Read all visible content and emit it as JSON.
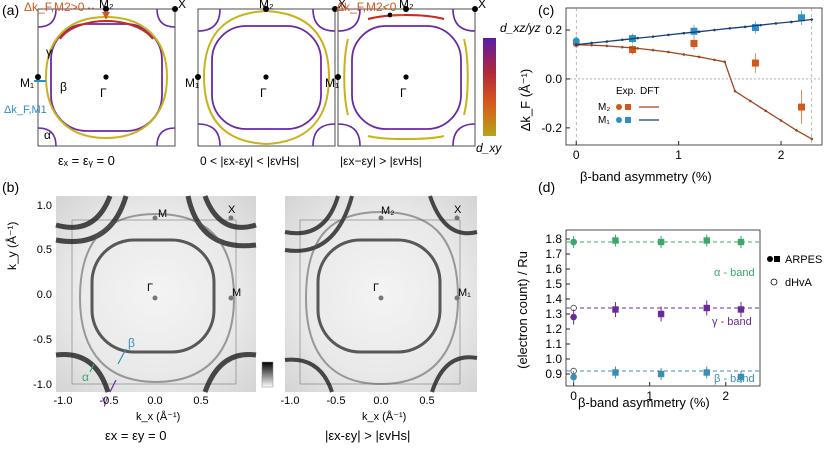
{
  "panel_a": {
    "label": "(a)",
    "cells": [
      {
        "caption": "εₓ = εᵧ = 0",
        "annotation": "Δk_F,M2>0",
        "annotation_left": "Δk_F,M1"
      },
      {
        "caption": "0 < |εx-εy| < |εvHs|",
        "annotation": ""
      },
      {
        "caption": "|εx−εy| > |εvHs|",
        "annotation": "Δk_F,M2<0"
      }
    ],
    "points": {
      "M1": "M₁",
      "M2": "M₂",
      "X": "X",
      "Gamma": "Γ"
    },
    "band_labels": {
      "alpha": "α",
      "beta": "β",
      "gamma": "γ"
    },
    "colorbar": {
      "top": "d_xz/yz",
      "bottom": "d_xy"
    },
    "colors": {
      "outer": "#6a2aa8",
      "inner_top": "#c8282a",
      "inner_mid": "#e06a1a",
      "inner_bottom": "#c9b21a",
      "m2_annot": "#d2571c",
      "m1_annot": "#2f8fc4"
    }
  },
  "panel_b": {
    "label": "(b)",
    "left": {
      "caption": "εx = εy = 0",
      "points": {
        "M_top": "M",
        "X": "X",
        "M_right": "M",
        "Gamma": "Γ"
      },
      "annot": {
        "beta": "β",
        "alpha": "α",
        "gamma": "γ"
      }
    },
    "right": {
      "caption": "|εx-εy| > |εvHs|",
      "points": {
        "M_top": "M₂",
        "X": "X",
        "M_right": "M₁",
        "Gamma": "Γ"
      }
    },
    "ylabel": "k_y (Å⁻¹)",
    "xlabel": "k_x (Å⁻¹)",
    "yticks": [
      "1.0",
      "0.5",
      "0.0",
      "-0.5",
      "-1.0"
    ],
    "xticks": [
      "-1.0",
      "-0.5",
      "0.0",
      "0.5"
    ],
    "annot_colors": {
      "alpha": "#3aa86a",
      "beta": "#3a8db4",
      "gamma": "#6a2a9a"
    }
  },
  "panel_c": {
    "label": "(c)",
    "ylabel": "Δk_F (Å⁻¹)",
    "xlabel": "β-band asymmetry (%)",
    "legend": {
      "exp": "Exp.",
      "dft": "DFT",
      "m2": "M₂",
      "m1": "M₁"
    },
    "colors": {
      "m2": "#d2571c",
      "m1": "#2f8fc4",
      "dft_m2": "#a0461c",
      "dft_m1": "#1a3f7a"
    }
  },
  "panel_d": {
    "label": "(d)",
    "ylabel": "(electron count) / Ru",
    "xlabel": "β-band asymmetry (%)",
    "legend": {
      "arpes": "ARPES",
      "dhva": "dHvA"
    },
    "band_labels": {
      "alpha": "α - band",
      "gamma": "γ - band",
      "beta": "β - band"
    },
    "colors": {
      "alpha": "#3aa86a",
      "gamma": "#6a2a9a",
      "beta": "#3a8db4"
    }
  },
  "chart_data": [
    {
      "type": "scatter",
      "xlabel": "β-band asymmetry (%)",
      "ylabel": "Δk_F (Å⁻¹)",
      "xlim": [
        -0.1,
        2.4
      ],
      "ylim": [
        -0.27,
        0.29
      ],
      "xticks": [
        0,
        1,
        2
      ],
      "yticks": [
        -0.2,
        0.0,
        0.2
      ],
      "series": [
        {
          "name": "M₂",
          "kind": "Exp.",
          "x": [
            0.0,
            0.55,
            1.15,
            1.75,
            2.2
          ],
          "y": [
            0.145,
            0.12,
            0.145,
            0.065,
            -0.115
          ],
          "err": [
            0.02,
            0.02,
            0.025,
            0.04,
            0.07
          ]
        },
        {
          "name": "M₁",
          "kind": "Exp.",
          "x": [
            0.0,
            0.55,
            1.15,
            1.75,
            2.2
          ],
          "y": [
            0.155,
            0.165,
            0.195,
            0.21,
            0.25
          ],
          "err": [
            0.02,
            0.02,
            0.025,
            0.025,
            0.03
          ]
        },
        {
          "name": "M₂",
          "kind": "DFT",
          "x": [
            0.0,
            0.15,
            0.3,
            0.45,
            0.6,
            0.75,
            0.9,
            1.05,
            1.2,
            1.35,
            1.45,
            1.55,
            1.7,
            1.85,
            2.0,
            2.15,
            2.3
          ],
          "y": [
            0.14,
            0.138,
            0.135,
            0.13,
            0.125,
            0.118,
            0.11,
            0.1,
            0.09,
            0.078,
            0.07,
            -0.05,
            -0.09,
            -0.13,
            -0.17,
            -0.21,
            -0.245
          ]
        },
        {
          "name": "M₁",
          "kind": "DFT",
          "x": [
            0.0,
            0.15,
            0.3,
            0.45,
            0.6,
            0.75,
            0.9,
            1.05,
            1.2,
            1.35,
            1.5,
            1.65,
            1.8,
            1.95,
            2.1,
            2.3
          ],
          "y": [
            0.14,
            0.147,
            0.153,
            0.16,
            0.167,
            0.173,
            0.18,
            0.187,
            0.193,
            0.2,
            0.207,
            0.213,
            0.22,
            0.227,
            0.233,
            0.243
          ]
        }
      ]
    },
    {
      "type": "scatter",
      "xlabel": "β-band asymmetry (%)",
      "ylabel": "(electron count) / Ru",
      "xlim": [
        -0.1,
        2.45
      ],
      "ylim": [
        0.82,
        1.86
      ],
      "xticks": [
        0,
        1,
        2
      ],
      "yticks": [
        0.9,
        1.0,
        1.1,
        1.2,
        1.3,
        1.4,
        1.5,
        1.6,
        1.7,
        1.8
      ],
      "series": [
        {
          "name": "α - band",
          "kind": "ARPES",
          "x": [
            0.0,
            0.55,
            1.15,
            1.75,
            2.2
          ],
          "y": [
            1.78,
            1.79,
            1.78,
            1.79,
            1.78
          ],
          "err": [
            0.04,
            0.04,
            0.04,
            0.04,
            0.04
          ],
          "dhva": 1.78
        },
        {
          "name": "γ - band",
          "kind": "ARPES",
          "x": [
            0.0,
            0.55,
            1.15,
            1.75,
            2.2
          ],
          "y": [
            1.28,
            1.33,
            1.3,
            1.34,
            1.33
          ],
          "err": [
            0.05,
            0.05,
            0.05,
            0.05,
            0.05
          ],
          "dhva": 1.34
        },
        {
          "name": "β - band",
          "kind": "ARPES",
          "x": [
            0.0,
            0.55,
            1.15,
            1.75,
            2.2
          ],
          "y": [
            0.88,
            0.91,
            0.9,
            0.91,
            0.88
          ],
          "err": [
            0.04,
            0.04,
            0.04,
            0.04,
            0.04
          ],
          "dhva": 0.92
        }
      ]
    }
  ]
}
